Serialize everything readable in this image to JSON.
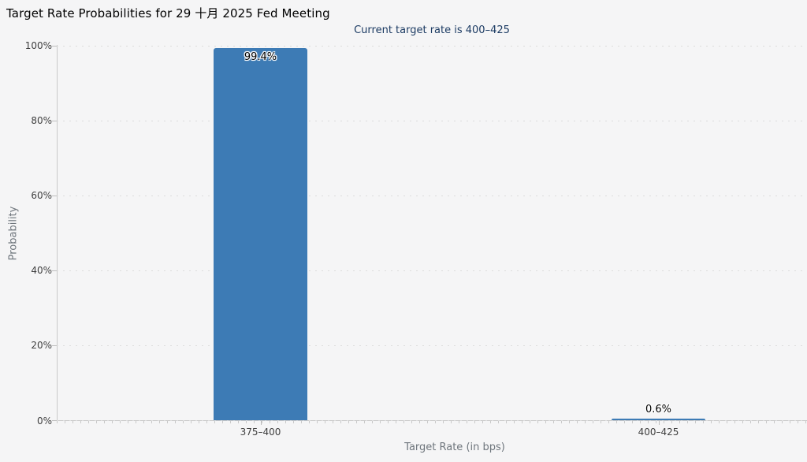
{
  "page": {
    "background_color": "#f5f5f6"
  },
  "chart_data": {
    "type": "bar",
    "title": "Target Rate Probabilities for 29 十月 2025 Fed Meeting",
    "subtitle": "Current target rate is 400–425",
    "xlabel": "Target Rate (in bps)",
    "ylabel": "Probability",
    "categories": [
      "375–400",
      "400–425"
    ],
    "values": [
      99.4,
      0.6
    ],
    "bar_labels": [
      "99.4%",
      "0.6%"
    ],
    "yticks": [
      {
        "value": 0,
        "label": "0%"
      },
      {
        "value": 20,
        "label": "20%"
      },
      {
        "value": 40,
        "label": "40%"
      },
      {
        "value": 60,
        "label": "60%"
      },
      {
        "value": 80,
        "label": "80%"
      },
      {
        "value": 100,
        "label": "100%"
      }
    ],
    "ylim": [
      0,
      100
    ],
    "grid": "horizontal-dotted",
    "legend": "none",
    "bar_color": "#3d7bb5",
    "subtitle_color": "#1c3b63",
    "axis_title_color": "#6e757c"
  }
}
